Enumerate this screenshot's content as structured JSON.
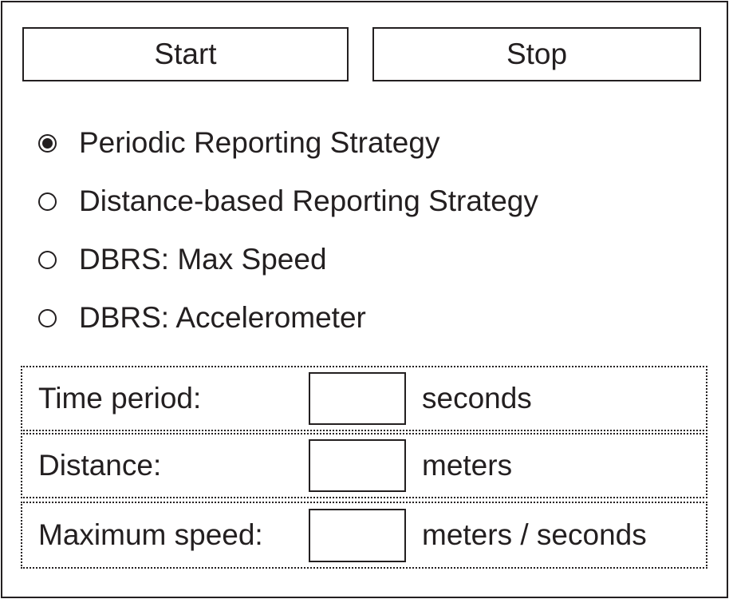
{
  "buttons": {
    "start_label": "Start",
    "stop_label": "Stop"
  },
  "strategies": [
    {
      "label": "Periodic Reporting Strategy",
      "selected": true
    },
    {
      "label": "Distance-based Reporting Strategy",
      "selected": false
    },
    {
      "label": "DBRS: Max Speed",
      "selected": false
    },
    {
      "label": "DBRS: Accelerometer",
      "selected": false
    }
  ],
  "fields": {
    "time_period": {
      "label": "Time period:",
      "value": "",
      "unit": "seconds"
    },
    "distance": {
      "label": "Distance:",
      "value": "",
      "unit": "meters"
    },
    "max_speed": {
      "label": "Maximum speed:",
      "value": "",
      "unit": "meters / seconds"
    }
  }
}
